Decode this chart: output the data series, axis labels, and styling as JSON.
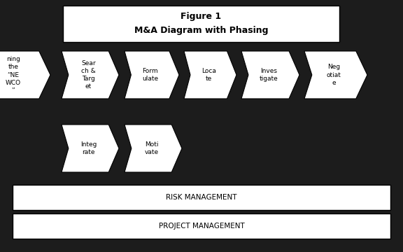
{
  "title_line1": "Figure 1",
  "title_line2": "M&A Diagram with Phasing",
  "row1_labels": [
    "ning\nthe\n“NE\nWCO\n”",
    "Sear\nch &\nTarg\net",
    "Form\nulate",
    "Loca\nte",
    "Inves\ntigate",
    "Neg\notiat\ne"
  ],
  "row2_labels": [
    "Integ\nrate",
    "Moti\nvate"
  ],
  "bottom_labels": [
    "RISK MANAGEMENT",
    "PROJECT MANAGEMENT"
  ],
  "bg_color": "#1c1c1c",
  "box_fill": "#ffffff",
  "box_edge": "#000000",
  "text_color": "#000000",
  "figsize": [
    5.76,
    3.6
  ],
  "dpi": 100
}
